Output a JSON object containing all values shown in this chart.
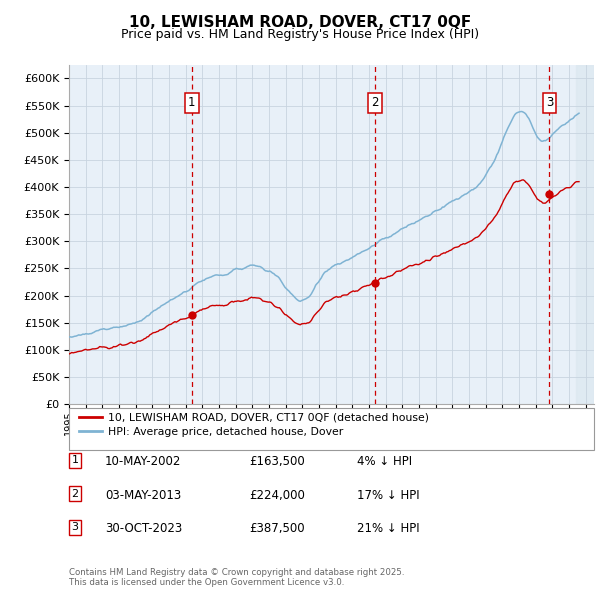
{
  "title": "10, LEWISHAM ROAD, DOVER, CT17 0QF",
  "subtitle": "Price paid vs. HM Land Registry's House Price Index (HPI)",
  "ylabel_ticks": [
    "£0",
    "£50K",
    "£100K",
    "£150K",
    "£200K",
    "£250K",
    "£300K",
    "£350K",
    "£400K",
    "£450K",
    "£500K",
    "£550K",
    "£600K"
  ],
  "ytick_values": [
    0,
    50000,
    100000,
    150000,
    200000,
    250000,
    300000,
    350000,
    400000,
    450000,
    500000,
    550000,
    600000
  ],
  "ylim": [
    0,
    625000
  ],
  "xlim_start": 1995.0,
  "xlim_end": 2026.5,
  "sale_dates": [
    2002.36,
    2013.34,
    2023.83
  ],
  "sale_prices": [
    163500,
    224000,
    387500
  ],
  "sale_labels": [
    "1",
    "2",
    "3"
  ],
  "legend_entries": [
    "10, LEWISHAM ROAD, DOVER, CT17 0QF (detached house)",
    "HPI: Average price, detached house, Dover"
  ],
  "legend_colors": [
    "#cc0000",
    "#7fb3d3"
  ],
  "table_rows": [
    [
      "1",
      "10-MAY-2002",
      "£163,500",
      "4% ↓ HPI"
    ],
    [
      "2",
      "03-MAY-2013",
      "£224,000",
      "17% ↓ HPI"
    ],
    [
      "3",
      "30-OCT-2023",
      "£387,500",
      "21% ↓ HPI"
    ]
  ],
  "footer": "Contains HM Land Registry data © Crown copyright and database right 2025.\nThis data is licensed under the Open Government Licence v3.0.",
  "bg_color": "#e8f0f8",
  "hpi_color": "#7fb3d3",
  "price_color": "#cc0000",
  "grid_color": "#c8d4e0",
  "vline_color": "#cc0000",
  "marker_color": "#cc0000",
  "shade_color": "#dce8f0",
  "title_fontsize": 11,
  "subtitle_fontsize": 9
}
